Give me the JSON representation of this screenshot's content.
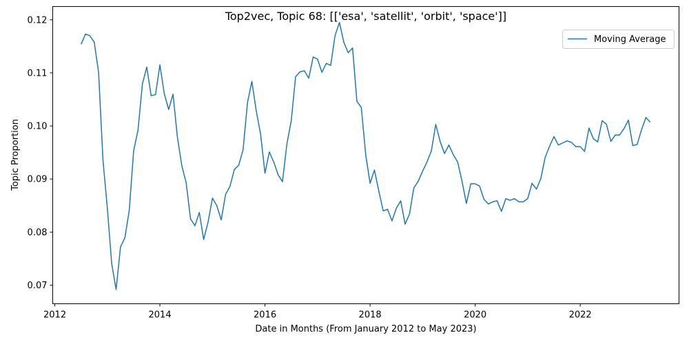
{
  "chart_data": {
    "type": "line",
    "title": "Top2vec, Topic 68: [['esa', 'satellit', 'orbit', 'space']]",
    "xlabel": "Date in Months (From January 2012 to May 2023)",
    "ylabel": "Topic Proportion",
    "xlim": [
      2011.96,
      2023.88
    ],
    "ylim": [
      0.0665,
      0.1225
    ],
    "grid": false,
    "legend_position": "top-right",
    "x_ticks": [
      {
        "value": 2012,
        "label": "2012"
      },
      {
        "value": 2014,
        "label": "2014"
      },
      {
        "value": 2016,
        "label": "2016"
      },
      {
        "value": 2018,
        "label": "2018"
      },
      {
        "value": 2020,
        "label": "2020"
      },
      {
        "value": 2022,
        "label": "2022"
      }
    ],
    "y_ticks": [
      {
        "value": 0.07,
        "label": "0.07"
      },
      {
        "value": 0.08,
        "label": "0.08"
      },
      {
        "value": 0.09,
        "label": "0.09"
      },
      {
        "value": 0.1,
        "label": "0.10"
      },
      {
        "value": 0.11,
        "label": "0.11"
      },
      {
        "value": 0.12,
        "label": "0.12"
      }
    ],
    "series": [
      {
        "name": "Moving Average",
        "color": "#1f77b4",
        "x": [
          2012.5,
          2012.583,
          2012.667,
          2012.75,
          2012.833,
          2012.917,
          2013.0,
          2013.083,
          2013.167,
          2013.25,
          2013.333,
          2013.417,
          2013.5,
          2013.583,
          2013.667,
          2013.75,
          2013.833,
          2013.917,
          2014.0,
          2014.083,
          2014.167,
          2014.25,
          2014.333,
          2014.417,
          2014.5,
          2014.583,
          2014.667,
          2014.75,
          2014.833,
          2014.917,
          2015.0,
          2015.083,
          2015.167,
          2015.25,
          2015.333,
          2015.417,
          2015.5,
          2015.583,
          2015.667,
          2015.75,
          2015.833,
          2015.917,
          2016.0,
          2016.083,
          2016.167,
          2016.25,
          2016.333,
          2016.417,
          2016.5,
          2016.583,
          2016.667,
          2016.75,
          2016.833,
          2016.917,
          2017.0,
          2017.083,
          2017.167,
          2017.25,
          2017.333,
          2017.417,
          2017.5,
          2017.583,
          2017.667,
          2017.75,
          2017.833,
          2017.917,
          2018.0,
          2018.083,
          2018.167,
          2018.25,
          2018.333,
          2018.417,
          2018.5,
          2018.583,
          2018.667,
          2018.75,
          2018.833,
          2018.917,
          2019.0,
          2019.083,
          2019.167,
          2019.25,
          2019.333,
          2019.417,
          2019.5,
          2019.583,
          2019.667,
          2019.75,
          2019.833,
          2019.917,
          2020.0,
          2020.083,
          2020.167,
          2020.25,
          2020.333,
          2020.417,
          2020.5,
          2020.583,
          2020.667,
          2020.75,
          2020.833,
          2020.917,
          2021.0,
          2021.083,
          2021.167,
          2021.25,
          2021.333,
          2021.417,
          2021.5,
          2021.583,
          2021.667,
          2021.75,
          2021.833,
          2021.917,
          2022.0,
          2022.083,
          2022.167,
          2022.25,
          2022.333,
          2022.417,
          2022.5,
          2022.583,
          2022.667,
          2022.75,
          2022.833,
          2022.917,
          2023.0,
          2023.083,
          2023.167,
          2023.25,
          2023.333
        ],
        "values": [
          0.1154,
          0.1173,
          0.117,
          0.1158,
          0.1101,
          0.0935,
          0.0845,
          0.074,
          0.0692,
          0.0772,
          0.0789,
          0.0841,
          0.0953,
          0.0992,
          0.1079,
          0.1111,
          0.1057,
          0.1059,
          0.1115,
          0.1061,
          0.1031,
          0.106,
          0.0979,
          0.0925,
          0.0893,
          0.0825,
          0.0812,
          0.0837,
          0.0786,
          0.0819,
          0.0864,
          0.085,
          0.0823,
          0.0871,
          0.0886,
          0.0918,
          0.0926,
          0.0955,
          0.1044,
          0.1084,
          0.1029,
          0.0984,
          0.0911,
          0.0951,
          0.0932,
          0.0908,
          0.0895,
          0.0966,
          0.101,
          0.1093,
          0.1102,
          0.1104,
          0.109,
          0.113,
          0.1126,
          0.1101,
          0.1118,
          0.1114,
          0.117,
          0.1195,
          0.1158,
          0.1138,
          0.1147,
          0.1046,
          0.1035,
          0.0946,
          0.0892,
          0.0917,
          0.0877,
          0.084,
          0.0843,
          0.0821,
          0.0845,
          0.0859,
          0.0815,
          0.0834,
          0.0883,
          0.0896,
          0.0915,
          0.0932,
          0.0953,
          0.1003,
          0.0971,
          0.0948,
          0.0964,
          0.0946,
          0.0932,
          0.0896,
          0.0854,
          0.0891,
          0.0891,
          0.0887,
          0.0862,
          0.0853,
          0.0857,
          0.0859,
          0.0839,
          0.0863,
          0.086,
          0.0863,
          0.0857,
          0.0857,
          0.0863,
          0.0892,
          0.0881,
          0.0901,
          0.0941,
          0.0962,
          0.098,
          0.0964,
          0.0968,
          0.0972,
          0.0969,
          0.0961,
          0.0961,
          0.0952,
          0.0996,
          0.0976,
          0.097,
          0.101,
          0.1003,
          0.0971,
          0.0983,
          0.0983,
          0.0995,
          0.1011,
          0.0963,
          0.0965,
          0.0993,
          0.1016,
          0.1007
        ]
      }
    ]
  }
}
